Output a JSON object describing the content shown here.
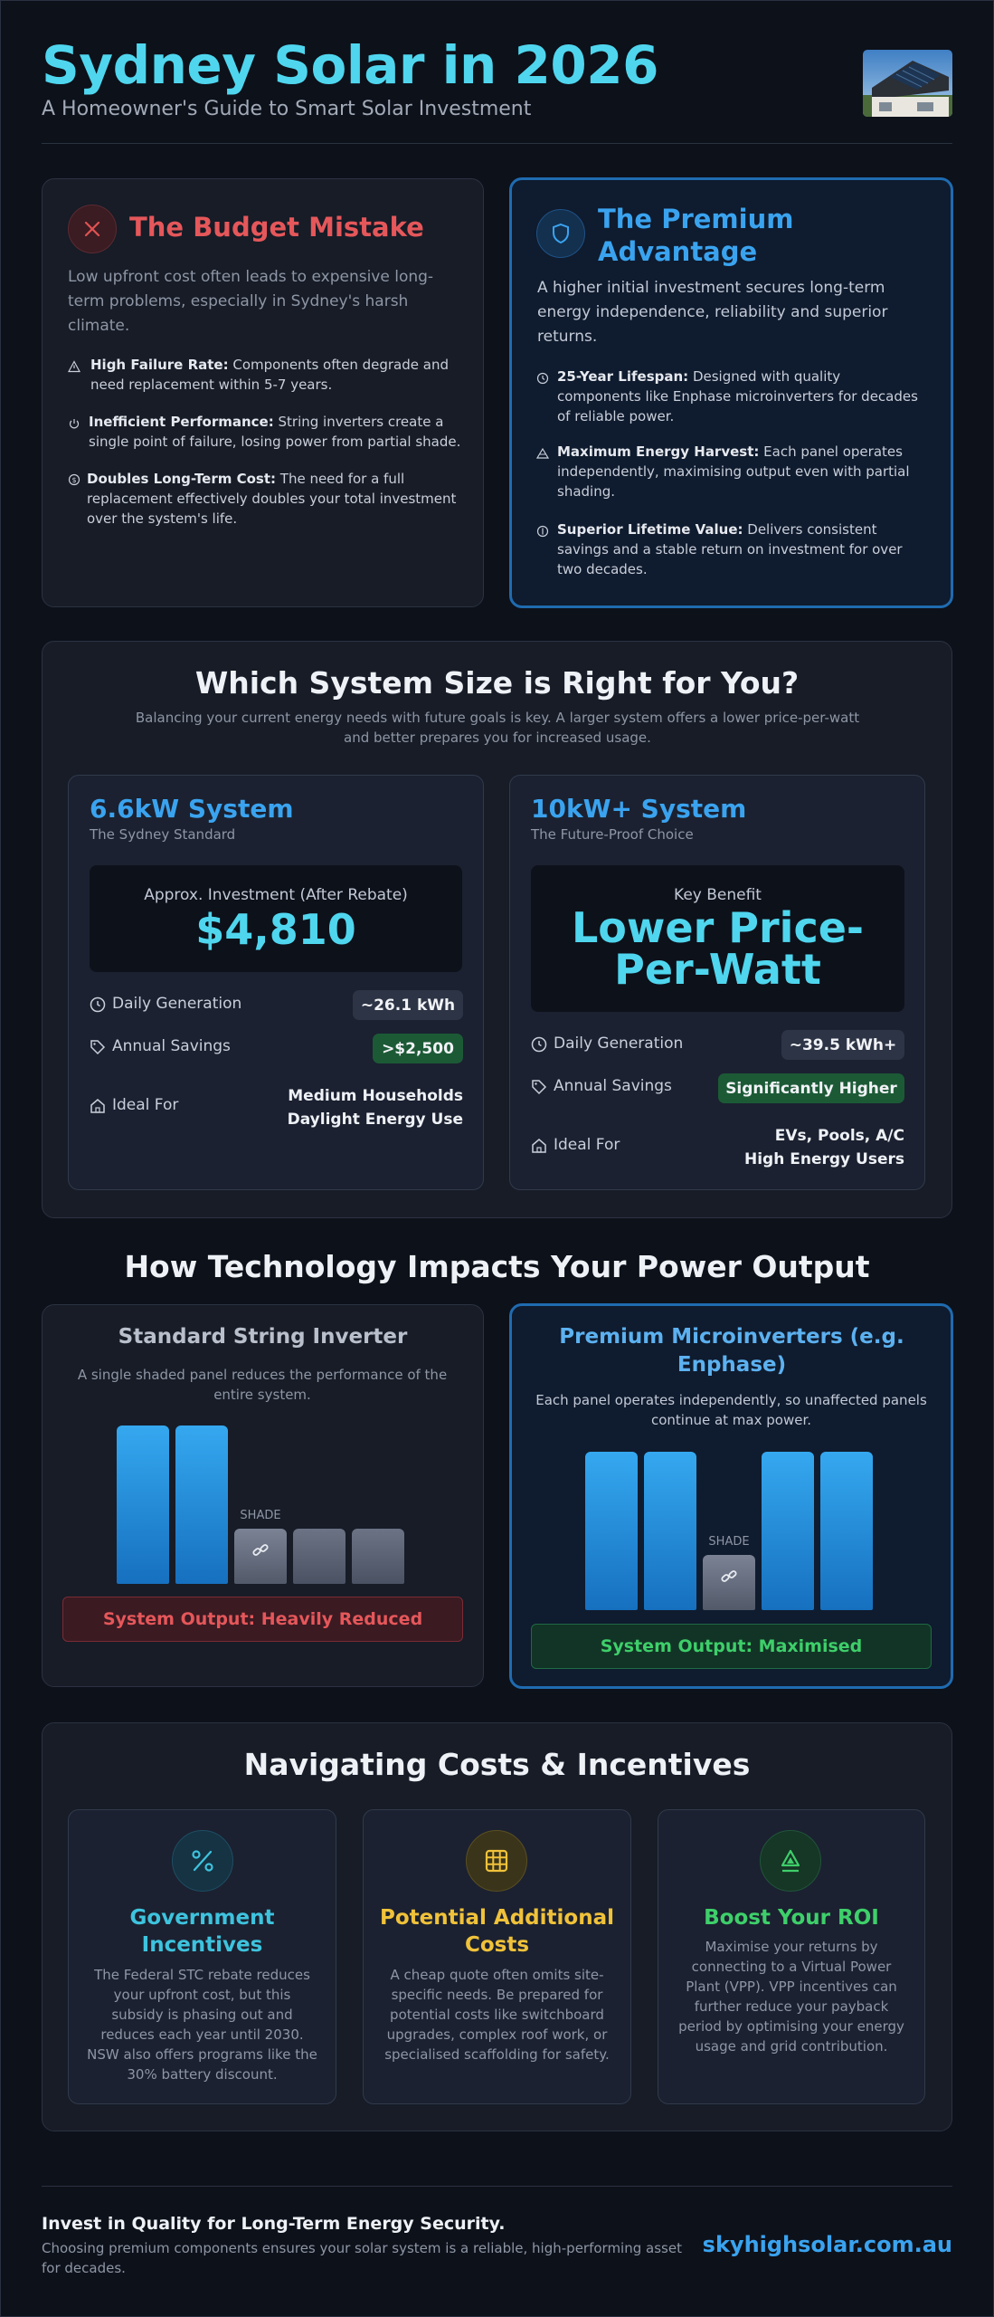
{
  "header": {
    "title": "Sydney Solar in 2026",
    "subtitle": "A Homeowner's Guide to Smart Solar Investment"
  },
  "budget": {
    "title": "The Budget Mistake",
    "intro": "Low upfront cost often leads to expensive long-term problems, especially in Sydney's harsh climate.",
    "points": [
      {
        "bold": "High Failure Rate:",
        "text": " Components often degrade and need replacement within 5-7 years."
      },
      {
        "bold": "Inefficient Performance:",
        "text": " String inverters create a single point of failure, losing power from partial shade."
      },
      {
        "bold": "Doubles Long-Term Cost:",
        "text": " The need for a full replacement effectively doubles your total investment over the system's life."
      }
    ]
  },
  "premium": {
    "title": "The Premium Advantage",
    "intro": "A higher initial investment secures long-term energy independence, reliability and superior returns.",
    "points": [
      {
        "bold": "25-Year Lifespan:",
        "text": " Designed with quality components like Enphase microinverters for decades of reliable power."
      },
      {
        "bold": "Maximum Energy Harvest:",
        "text": " Each panel operates independently, maximising output even with partial shading."
      },
      {
        "bold": "Superior Lifetime Value:",
        "text": " Delivers consistent savings and a stable return on investment for over two decades."
      }
    ]
  },
  "sizing": {
    "title": "Which System Size is Right for You?",
    "subtitle": "Balancing your current energy needs with future goals is key. A larger system offers a lower price-per-watt and better prepares you for increased usage.",
    "small": {
      "name": "6.6kW System",
      "tag": "The Sydney Standard",
      "box_label": "Approx. Investment (After Rebate)",
      "box_value": "$4,810",
      "gen_label": "Daily Generation",
      "gen_value": "~26.1 kWh",
      "save_label": "Annual Savings",
      "save_value": ">$2,500",
      "ideal_label": "Ideal For",
      "ideal_1": "Medium Households",
      "ideal_2": "Daylight Energy Use"
    },
    "large": {
      "name": "10kW+ System",
      "tag": "The Future-Proof Choice",
      "box_label": "Key Benefit",
      "box_value_1": "Lower Price-",
      "box_value_2": "Per-Watt",
      "gen_label": "Daily Generation",
      "gen_value": "~39.5 kWh+",
      "save_label": "Annual Savings",
      "save_value": "Significantly Higher",
      "ideal_label": "Ideal For",
      "ideal_1": "EVs, Pools, A/C",
      "ideal_2": "High Energy Users"
    }
  },
  "tech": {
    "title": "How Technology Impacts Your Power Output",
    "string": {
      "title": "Standard String Inverter",
      "desc": "A single shaded panel reduces the performance of the entire system.",
      "shade": "SHADE",
      "output": "System Output: Heavily Reduced",
      "panel_levels": [
        1,
        1,
        0.35,
        0.35,
        0.35
      ]
    },
    "micro": {
      "title": "Premium Microinverters (e.g. Enphase)",
      "desc": "Each panel operates independently, so unaffected panels continue at max power.",
      "shade": "SHADE",
      "output": "System Output: Maximised",
      "panel_levels": [
        1,
        1,
        0.35,
        1,
        1
      ]
    }
  },
  "costs": {
    "title": "Navigating Costs & Incentives",
    "items": [
      {
        "title_1": "Government",
        "title_2": "Incentives",
        "color": "#3ec3de",
        "icon": "percent-icon",
        "text": [
          "The Federal STC rebate reduces",
          "your upfront cost, but this",
          "subsidy is phasing out and",
          "reduces each year until 2030.",
          "NSW also offers programs like the",
          "30% battery discount."
        ]
      },
      {
        "title_1": "Potential Additional",
        "title_2": "Costs",
        "color": "#f0c23a",
        "icon": "grid-icon",
        "text": [
          "A cheap quote often omits site-",
          "specific needs. Be prepared for",
          "potential costs like switchboard",
          "upgrades, complex roof work, or",
          "specialised scaffolding for safety."
        ]
      },
      {
        "title_1": "Boost Your ROI",
        "title_2": "",
        "color": "#3ecf6a",
        "icon": "recycle-icon",
        "text": [
          "Maximise your returns by",
          "connecting to a Virtual Power",
          "Plant (VPP). VPP incentives can",
          "further reduce your payback",
          "period by optimising your energy",
          "usage and grid contribution."
        ]
      }
    ]
  },
  "footer": {
    "headline": "Invest in Quality for Long-Term Energy Security.",
    "text": "Choosing premium components ensures your solar system is a reliable, high-performing asset for decades.",
    "url": "skyhighsolar.com.au"
  }
}
